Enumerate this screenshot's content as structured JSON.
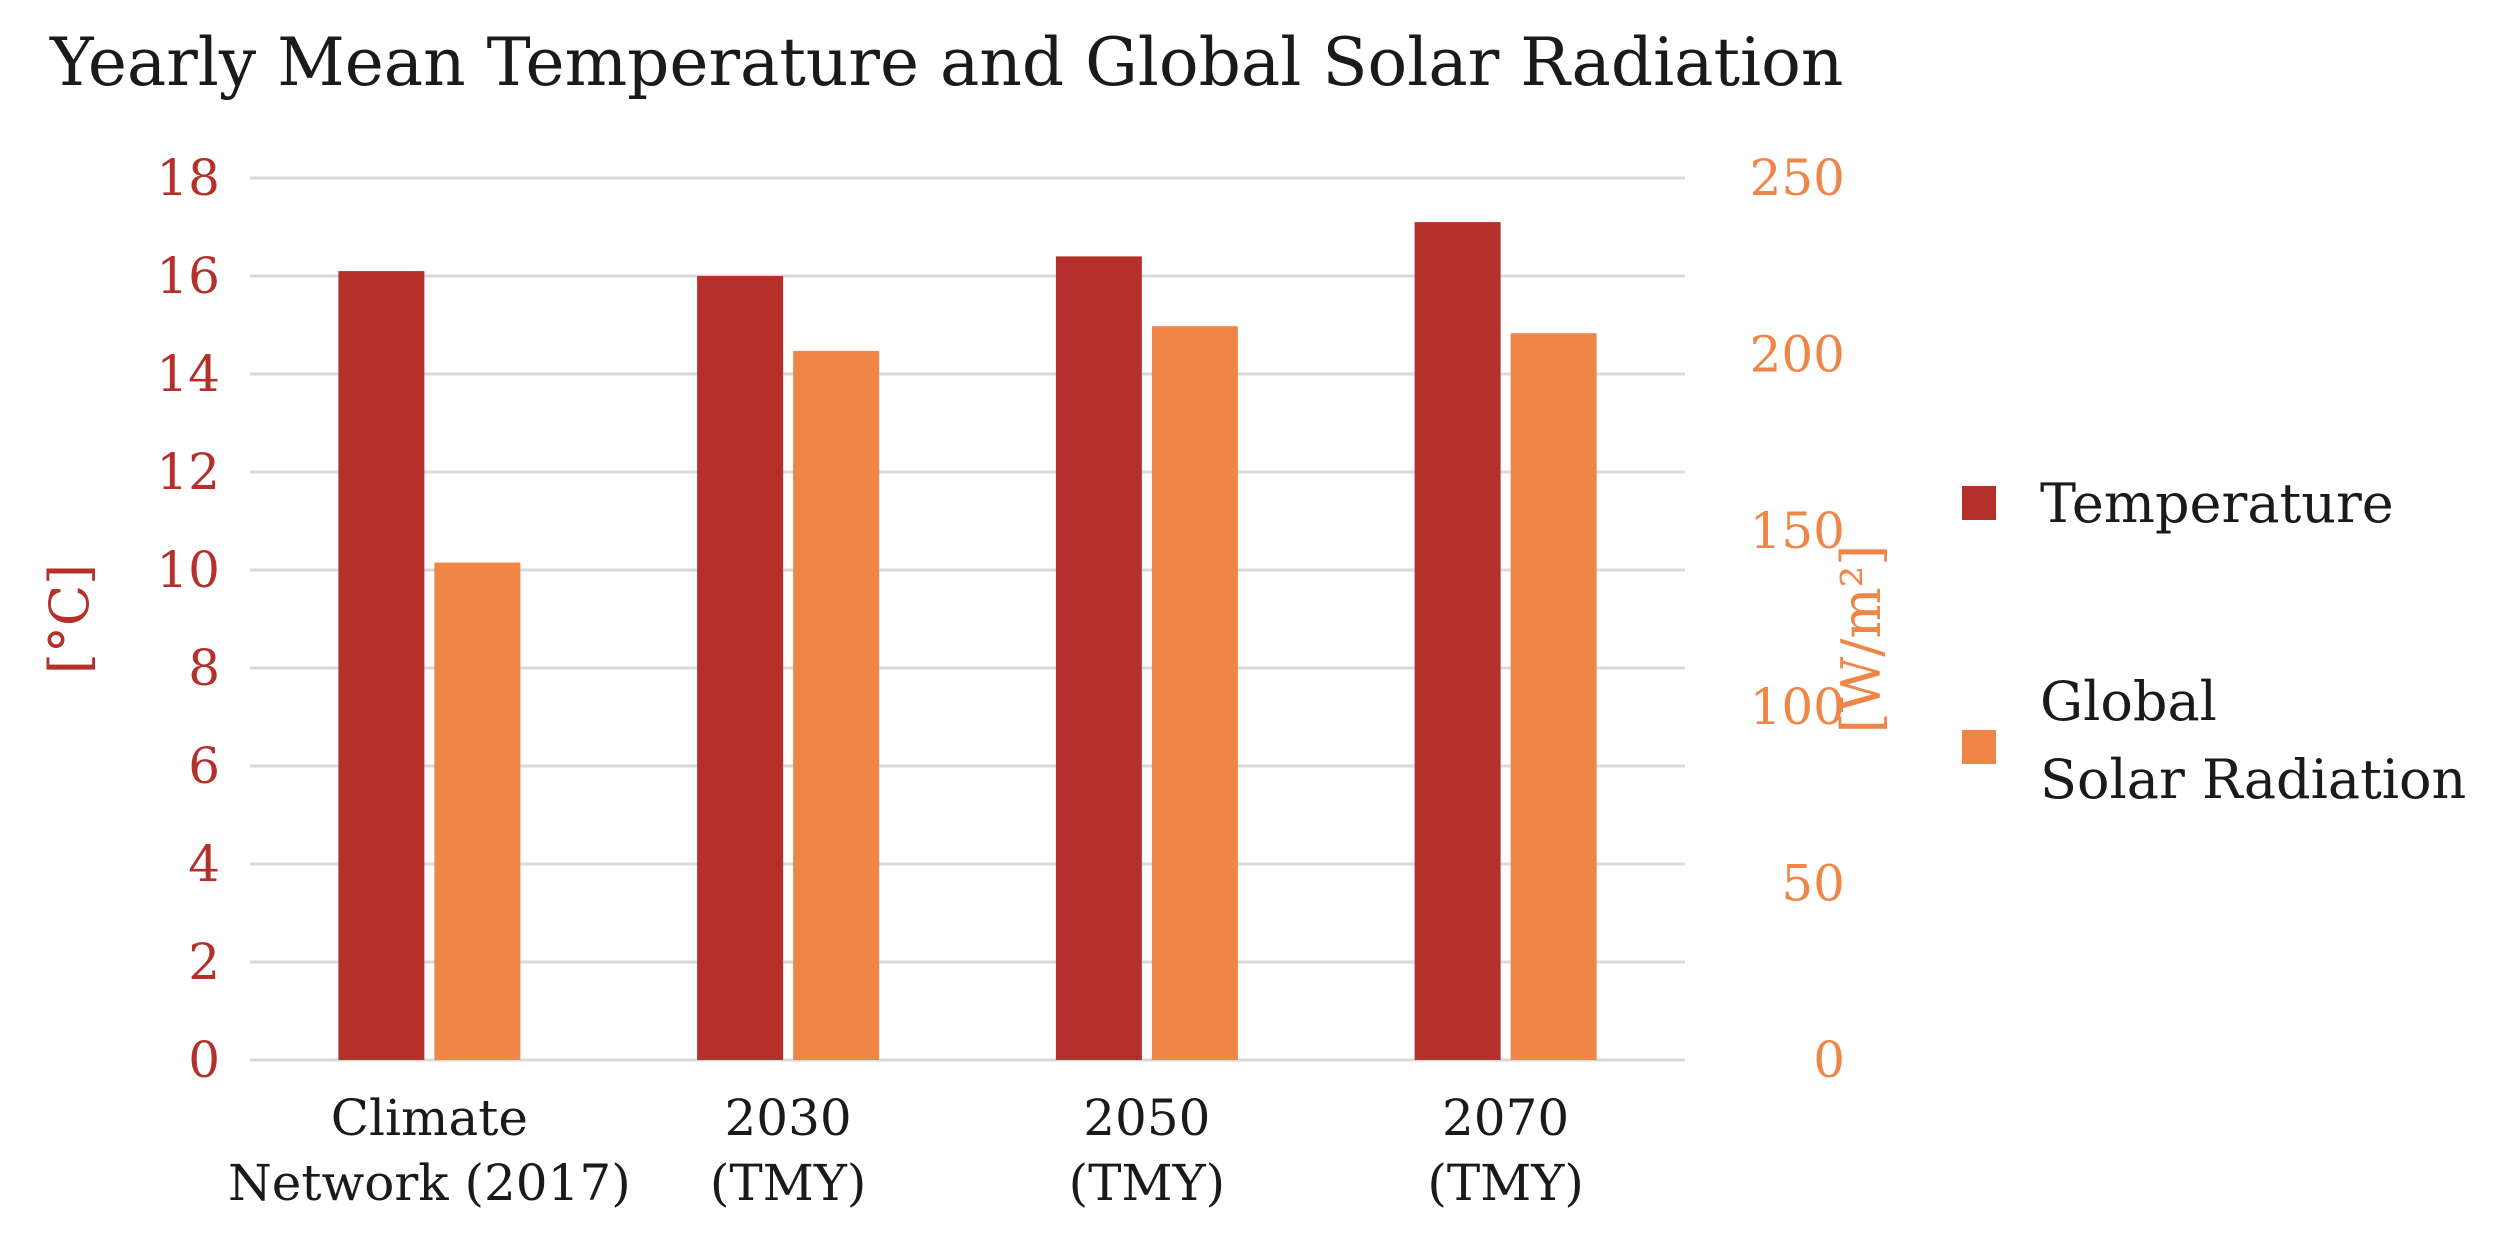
{
  "chart_data": {
    "type": "bar",
    "title": "Yearly Mean Temperature and Global Solar Radiation",
    "categories": [
      [
        "Climate",
        "Network (2017)"
      ],
      [
        "2030",
        "(TMY)"
      ],
      [
        "2050",
        "(TMY)"
      ],
      [
        "2070",
        "(TMY)"
      ]
    ],
    "series": [
      {
        "name": "Temperature",
        "axis": "left",
        "color": "#b5302a",
        "values": [
          16.1,
          16.0,
          16.4,
          17.1
        ]
      },
      {
        "name": "Global Solar Radiation",
        "legend_lines": [
          "Global",
          "Solar Radiation"
        ],
        "axis": "right",
        "color": "#ef8648",
        "values": [
          141,
          201,
          208,
          206
        ]
      }
    ],
    "y_left": {
      "label": "[°C]",
      "ylim": [
        0,
        18
      ],
      "ticks": [
        "0",
        "2",
        "4",
        "6",
        "8",
        "10",
        "12",
        "14",
        "16",
        "18"
      ],
      "color": "#b5302a"
    },
    "y_right": {
      "label": "[W/m²]",
      "ylim": [
        0,
        250
      ],
      "ticks": [
        "0",
        "50",
        "100",
        "150",
        "200",
        "250"
      ],
      "color": "#ef8648"
    },
    "grid": true,
    "legend_position": "right"
  }
}
